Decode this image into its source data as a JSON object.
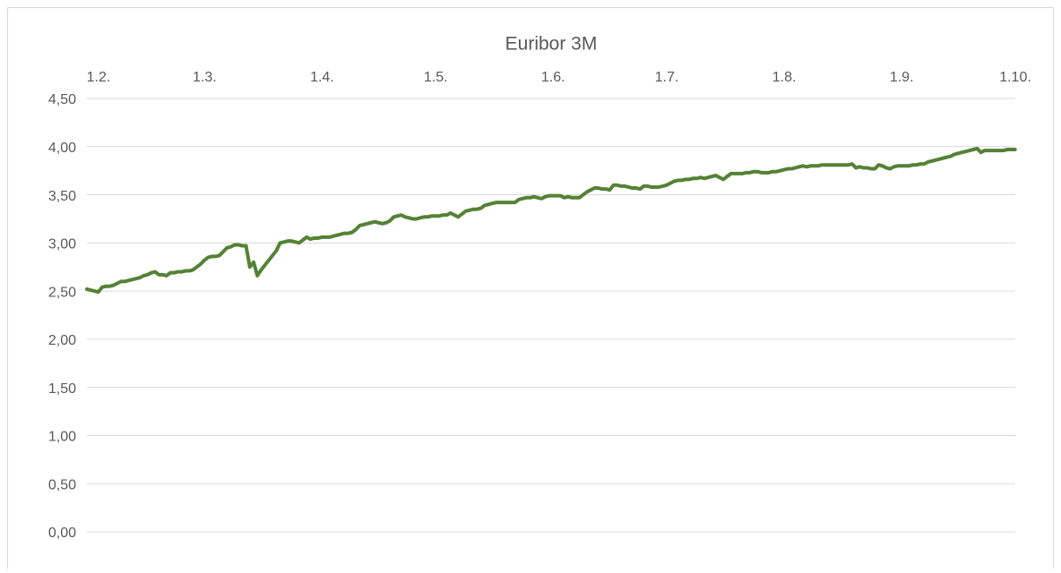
{
  "chart_data": {
    "type": "line",
    "title": "Euribor 3M",
    "categories": [
      "1.2.",
      null,
      null,
      null,
      null,
      null,
      null,
      null,
      null,
      null,
      null,
      null,
      null,
      null,
      null,
      null,
      null,
      null,
      null,
      null,
      null,
      null,
      null,
      null,
      null,
      null,
      null,
      null,
      "1.3.",
      null,
      null,
      null,
      null,
      null,
      null,
      null,
      null,
      null,
      null,
      null,
      null,
      null,
      null,
      null,
      null,
      null,
      null,
      null,
      null,
      null,
      null,
      null,
      null,
      null,
      null,
      null,
      null,
      null,
      null,
      "1.4.",
      null,
      null,
      null,
      null,
      null,
      null,
      null,
      null,
      null,
      null,
      null,
      null,
      null,
      null,
      null,
      null,
      null,
      null,
      null,
      null,
      null,
      null,
      null,
      null,
      null,
      null,
      null,
      null,
      null,
      "1.5.",
      null,
      null,
      null,
      null,
      null,
      null,
      null,
      null,
      null,
      null,
      null,
      null,
      null,
      null,
      null,
      null,
      null,
      null,
      null,
      null,
      null,
      null,
      null,
      null,
      null,
      null,
      null,
      null,
      null,
      null,
      "1.6.",
      null,
      null,
      null,
      null,
      null,
      null,
      null,
      null,
      null,
      null,
      null,
      null,
      null,
      null,
      null,
      null,
      null,
      null,
      null,
      null,
      null,
      null,
      null,
      null,
      null,
      null,
      null,
      null,
      null,
      "1.7.",
      null,
      null,
      null,
      null,
      null,
      null,
      null,
      null,
      null,
      null,
      null,
      null,
      null,
      null,
      null,
      null,
      null,
      null,
      null,
      null,
      null,
      null,
      null,
      null,
      null,
      null,
      null,
      null,
      null,
      null,
      "1.8.",
      null,
      null,
      null,
      null,
      null,
      null,
      null,
      null,
      null,
      null,
      null,
      null,
      null,
      null,
      null,
      null,
      null,
      null,
      null,
      null,
      null,
      null,
      null,
      null,
      null,
      null,
      null,
      null,
      null,
      null,
      "1.9.",
      null,
      null,
      null,
      null,
      null,
      null,
      null,
      null,
      null,
      null,
      null,
      null,
      null,
      null,
      null,
      null,
      null,
      null,
      null,
      null,
      null,
      null,
      null,
      null,
      null,
      null,
      null,
      null,
      null,
      "1.10.",
      null,
      null,
      null
    ],
    "values": [
      2.52,
      2.51,
      2.5,
      2.49,
      2.54,
      2.55,
      2.55,
      2.56,
      2.58,
      2.6,
      2.6,
      2.61,
      2.62,
      2.63,
      2.64,
      2.66,
      2.67,
      2.69,
      2.7,
      2.67,
      2.67,
      2.66,
      2.69,
      2.69,
      2.7,
      2.7,
      2.71,
      2.71,
      2.72,
      2.75,
      2.78,
      2.82,
      2.85,
      2.86,
      2.86,
      2.87,
      2.91,
      2.95,
      2.96,
      2.98,
      2.98,
      2.97,
      2.97,
      2.75,
      2.8,
      2.66,
      2.72,
      2.77,
      2.82,
      2.87,
      2.92,
      3.0,
      3.01,
      3.02,
      3.02,
      3.01,
      3.0,
      3.03,
      3.06,
      3.04,
      3.05,
      3.05,
      3.06,
      3.06,
      3.06,
      3.07,
      3.08,
      3.09,
      3.1,
      3.1,
      3.11,
      3.14,
      3.18,
      3.19,
      3.2,
      3.21,
      3.22,
      3.21,
      3.2,
      3.21,
      3.23,
      3.27,
      3.28,
      3.29,
      3.27,
      3.26,
      3.25,
      3.25,
      3.26,
      3.27,
      3.27,
      3.28,
      3.28,
      3.28,
      3.29,
      3.29,
      3.31,
      3.29,
      3.27,
      3.3,
      3.33,
      3.34,
      3.35,
      3.35,
      3.36,
      3.39,
      3.4,
      3.41,
      3.42,
      3.42,
      3.42,
      3.42,
      3.42,
      3.42,
      3.45,
      3.46,
      3.47,
      3.47,
      3.48,
      3.47,
      3.46,
      3.48,
      3.49,
      3.49,
      3.49,
      3.49,
      3.47,
      3.48,
      3.47,
      3.47,
      3.47,
      3.5,
      3.53,
      3.55,
      3.57,
      3.57,
      3.56,
      3.56,
      3.55,
      3.6,
      3.6,
      3.59,
      3.59,
      3.58,
      3.57,
      3.57,
      3.56,
      3.59,
      3.59,
      3.58,
      3.58,
      3.58,
      3.59,
      3.6,
      3.62,
      3.64,
      3.65,
      3.65,
      3.66,
      3.66,
      3.67,
      3.67,
      3.68,
      3.67,
      3.68,
      3.69,
      3.7,
      3.68,
      3.66,
      3.69,
      3.72,
      3.72,
      3.72,
      3.72,
      3.73,
      3.73,
      3.74,
      3.74,
      3.73,
      3.73,
      3.73,
      3.74,
      3.74,
      3.75,
      3.76,
      3.77,
      3.77,
      3.78,
      3.79,
      3.8,
      3.79,
      3.8,
      3.8,
      3.8,
      3.81,
      3.81,
      3.81,
      3.81,
      3.81,
      3.81,
      3.81,
      3.81,
      3.82,
      3.78,
      3.79,
      3.78,
      3.78,
      3.77,
      3.77,
      3.81,
      3.8,
      3.78,
      3.77,
      3.79,
      3.8,
      3.8,
      3.8,
      3.8,
      3.81,
      3.81,
      3.82,
      3.82,
      3.84,
      3.85,
      3.86,
      3.87,
      3.88,
      3.89,
      3.9,
      3.92,
      3.93,
      3.94,
      3.95,
      3.96,
      3.97,
      3.98,
      3.94,
      3.96,
      3.96,
      3.96,
      3.96,
      3.96,
      3.96,
      3.97,
      3.97,
      3.97
    ],
    "color": "#548235",
    "ylim": [
      0,
      4.5
    ],
    "yticks": [
      {
        "value": 0,
        "label": "0,00"
      },
      {
        "value": 0.5,
        "label": "0,50"
      },
      {
        "value": 1,
        "label": "1,00"
      },
      {
        "value": 1.5,
        "label": "1,50"
      },
      {
        "value": 2,
        "label": "2,00"
      },
      {
        "value": 2.5,
        "label": "2,50"
      },
      {
        "value": 3,
        "label": "3,00"
      },
      {
        "value": 3.5,
        "label": "3,50"
      },
      {
        "value": 4,
        "label": "4,00"
      },
      {
        "value": 4.5,
        "label": "4,50"
      }
    ],
    "grid": true,
    "x_axis_position": "top"
  }
}
